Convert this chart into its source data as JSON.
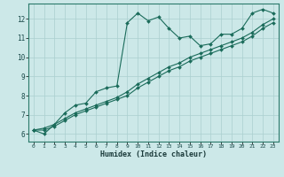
{
  "xlabel": "Humidex (Indice chaleur)",
  "xlim": [
    -0.5,
    23.5
  ],
  "ylim": [
    5.6,
    12.8
  ],
  "yticks": [
    6,
    7,
    8,
    9,
    10,
    11,
    12
  ],
  "xticks": [
    0,
    1,
    2,
    3,
    4,
    5,
    6,
    7,
    8,
    9,
    10,
    11,
    12,
    13,
    14,
    15,
    16,
    17,
    18,
    19,
    20,
    21,
    22,
    23
  ],
  "bg_color": "#cce8e8",
  "grid_color": "#aacfcf",
  "line_color": "#1a6b5a",
  "line1_x": [
    0,
    1,
    2,
    3,
    4,
    5,
    6,
    7,
    8,
    9,
    10,
    11,
    12,
    13,
    14,
    15,
    16,
    17,
    18,
    19,
    20,
    21,
    22,
    23
  ],
  "line1_y": [
    6.2,
    6.0,
    6.5,
    7.1,
    7.5,
    7.6,
    8.2,
    8.4,
    8.5,
    11.8,
    12.3,
    11.9,
    12.1,
    11.5,
    11.0,
    11.1,
    10.6,
    10.7,
    11.2,
    11.2,
    11.5,
    12.3,
    12.5,
    12.3
  ],
  "line2_x": [
    0,
    1,
    2,
    3,
    4,
    5,
    6,
    7,
    8,
    9,
    10,
    11,
    12,
    13,
    14,
    15,
    16,
    17,
    18,
    19,
    20,
    21,
    22,
    23
  ],
  "line2_y": [
    6.2,
    6.3,
    6.5,
    6.8,
    7.1,
    7.3,
    7.5,
    7.7,
    7.9,
    8.2,
    8.6,
    8.9,
    9.2,
    9.5,
    9.7,
    10.0,
    10.2,
    10.4,
    10.6,
    10.8,
    11.0,
    11.3,
    11.7,
    12.0
  ],
  "line3_x": [
    0,
    1,
    2,
    3,
    4,
    5,
    6,
    7,
    8,
    9,
    10,
    11,
    12,
    13,
    14,
    15,
    16,
    17,
    18,
    19,
    20,
    21,
    22,
    23
  ],
  "line3_y": [
    6.2,
    6.2,
    6.4,
    6.7,
    7.0,
    7.2,
    7.4,
    7.6,
    7.8,
    8.0,
    8.4,
    8.7,
    9.0,
    9.3,
    9.5,
    9.8,
    10.0,
    10.2,
    10.4,
    10.6,
    10.8,
    11.1,
    11.5,
    11.8
  ]
}
